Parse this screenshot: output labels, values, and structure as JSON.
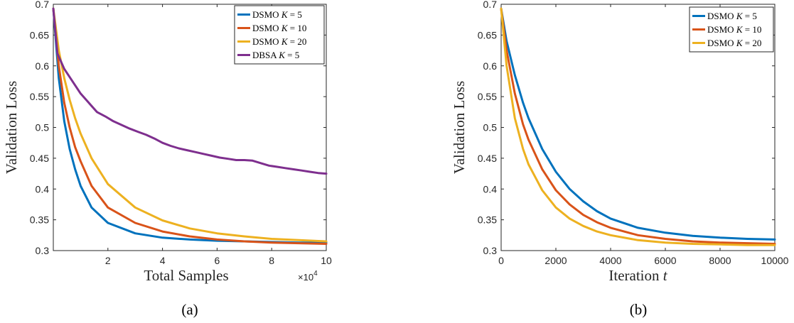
{
  "chart_data": [
    {
      "type": "line",
      "sublabel": "(a)",
      "xlabel": "Total Samples",
      "ylabel": "Validation Loss",
      "x_multiplier": "×10",
      "x_multiplier_exp": "4",
      "xlim": [
        0,
        100000
      ],
      "ylim": [
        0.3,
        0.7
      ],
      "xticks": [
        20000,
        40000,
        60000,
        80000,
        100000
      ],
      "xtick_labels": [
        "2",
        "4",
        "6",
        "8",
        "10"
      ],
      "yticks": [
        0.3,
        0.35,
        0.4,
        0.45,
        0.5,
        0.55,
        0.6,
        0.65,
        0.7
      ],
      "ytick_labels": [
        "0.3",
        "0.35",
        "0.4",
        "0.45",
        "0.5",
        "0.55",
        "0.6",
        "0.65",
        "0.7"
      ],
      "legend_position": "top-right",
      "series": [
        {
          "name": "DSMO K = 5",
          "color": "#0072BD",
          "x": [
            0,
            2000,
            4000,
            6000,
            8000,
            10000,
            14000,
            20000,
            30000,
            40000,
            50000,
            60000,
            70000,
            80000,
            90000,
            100000
          ],
          "y": [
            0.693,
            0.58,
            0.51,
            0.465,
            0.432,
            0.405,
            0.37,
            0.345,
            0.328,
            0.321,
            0.318,
            0.316,
            0.315,
            0.314,
            0.313,
            0.313
          ]
        },
        {
          "name": "DSMO K = 10",
          "color": "#D95319",
          "x": [
            0,
            2000,
            4000,
            6000,
            8000,
            10000,
            14000,
            20000,
            30000,
            40000,
            50000,
            60000,
            70000,
            80000,
            90000,
            100000
          ],
          "y": [
            0.693,
            0.6,
            0.54,
            0.5,
            0.468,
            0.445,
            0.405,
            0.37,
            0.345,
            0.331,
            0.323,
            0.318,
            0.315,
            0.313,
            0.312,
            0.311
          ]
        },
        {
          "name": "DSMO K = 20",
          "color": "#EDB120",
          "x": [
            0,
            2000,
            4000,
            6000,
            8000,
            10000,
            14000,
            20000,
            30000,
            40000,
            50000,
            60000,
            70000,
            80000,
            90000,
            100000
          ],
          "y": [
            0.693,
            0.625,
            0.58,
            0.545,
            0.515,
            0.49,
            0.45,
            0.408,
            0.37,
            0.349,
            0.336,
            0.328,
            0.323,
            0.319,
            0.317,
            0.315
          ]
        },
        {
          "name": "DBSA K = 5",
          "color": "#7E2F8E",
          "x": [
            0,
            1500,
            4000,
            7000,
            10000,
            13000,
            16000,
            19000,
            22000,
            25000,
            28000,
            31000,
            34000,
            37000,
            40000,
            43000,
            46000,
            49000,
            52000,
            55000,
            58000,
            61000,
            64000,
            67000,
            70000,
            73000,
            76000,
            79000,
            82000,
            85000,
            88000,
            91000,
            94000,
            97000,
            100000
          ],
          "y": [
            0.693,
            0.62,
            0.595,
            0.575,
            0.555,
            0.54,
            0.525,
            0.518,
            0.51,
            0.504,
            0.498,
            0.493,
            0.488,
            0.482,
            0.475,
            0.47,
            0.466,
            0.463,
            0.46,
            0.457,
            0.454,
            0.451,
            0.449,
            0.447,
            0.447,
            0.446,
            0.442,
            0.438,
            0.436,
            0.434,
            0.432,
            0.43,
            0.428,
            0.426,
            0.425
          ]
        }
      ]
    },
    {
      "type": "line",
      "sublabel": "(b)",
      "xlabel": "Iteration t",
      "xlabel_main": "Iteration ",
      "xlabel_var": "t",
      "ylabel": "Validation Loss",
      "xlim": [
        0,
        10000
      ],
      "ylim": [
        0.3,
        0.7
      ],
      "xticks": [
        0,
        2000,
        4000,
        6000,
        8000,
        10000
      ],
      "xtick_labels": [
        "0",
        "2000",
        "4000",
        "6000",
        "8000",
        "10000"
      ],
      "yticks": [
        0.3,
        0.35,
        0.4,
        0.45,
        0.5,
        0.55,
        0.6,
        0.65,
        0.7
      ],
      "ytick_labels": [
        "0.3",
        "0.35",
        "0.4",
        "0.45",
        "0.5",
        "0.55",
        "0.6",
        "0.65",
        "0.7"
      ],
      "legend_position": "top-right",
      "series": [
        {
          "name": "DSMO K = 5",
          "color": "#0072BD",
          "x": [
            0,
            200,
            500,
            800,
            1000,
            1500,
            2000,
            2500,
            3000,
            3500,
            4000,
            5000,
            6000,
            7000,
            8000,
            9000,
            10000
          ],
          "y": [
            0.693,
            0.64,
            0.585,
            0.54,
            0.515,
            0.465,
            0.428,
            0.4,
            0.38,
            0.364,
            0.352,
            0.337,
            0.329,
            0.324,
            0.321,
            0.319,
            0.318
          ]
        },
        {
          "name": "DSMO K = 10",
          "color": "#D95319",
          "x": [
            0,
            200,
            500,
            800,
            1000,
            1500,
            2000,
            2500,
            3000,
            3500,
            4000,
            5000,
            6000,
            7000,
            8000,
            9000,
            10000
          ],
          "y": [
            0.693,
            0.625,
            0.555,
            0.505,
            0.48,
            0.432,
            0.398,
            0.375,
            0.358,
            0.346,
            0.337,
            0.325,
            0.319,
            0.315,
            0.313,
            0.312,
            0.311
          ]
        },
        {
          "name": "DSMO K = 20",
          "color": "#EDB120",
          "x": [
            0,
            200,
            500,
            800,
            1000,
            1500,
            2000,
            2500,
            3000,
            3500,
            4000,
            5000,
            6000,
            7000,
            8000,
            9000,
            10000
          ],
          "y": [
            0.693,
            0.6,
            0.515,
            0.465,
            0.44,
            0.398,
            0.37,
            0.352,
            0.34,
            0.331,
            0.325,
            0.317,
            0.313,
            0.311,
            0.31,
            0.309,
            0.309
          ]
        }
      ]
    }
  ]
}
